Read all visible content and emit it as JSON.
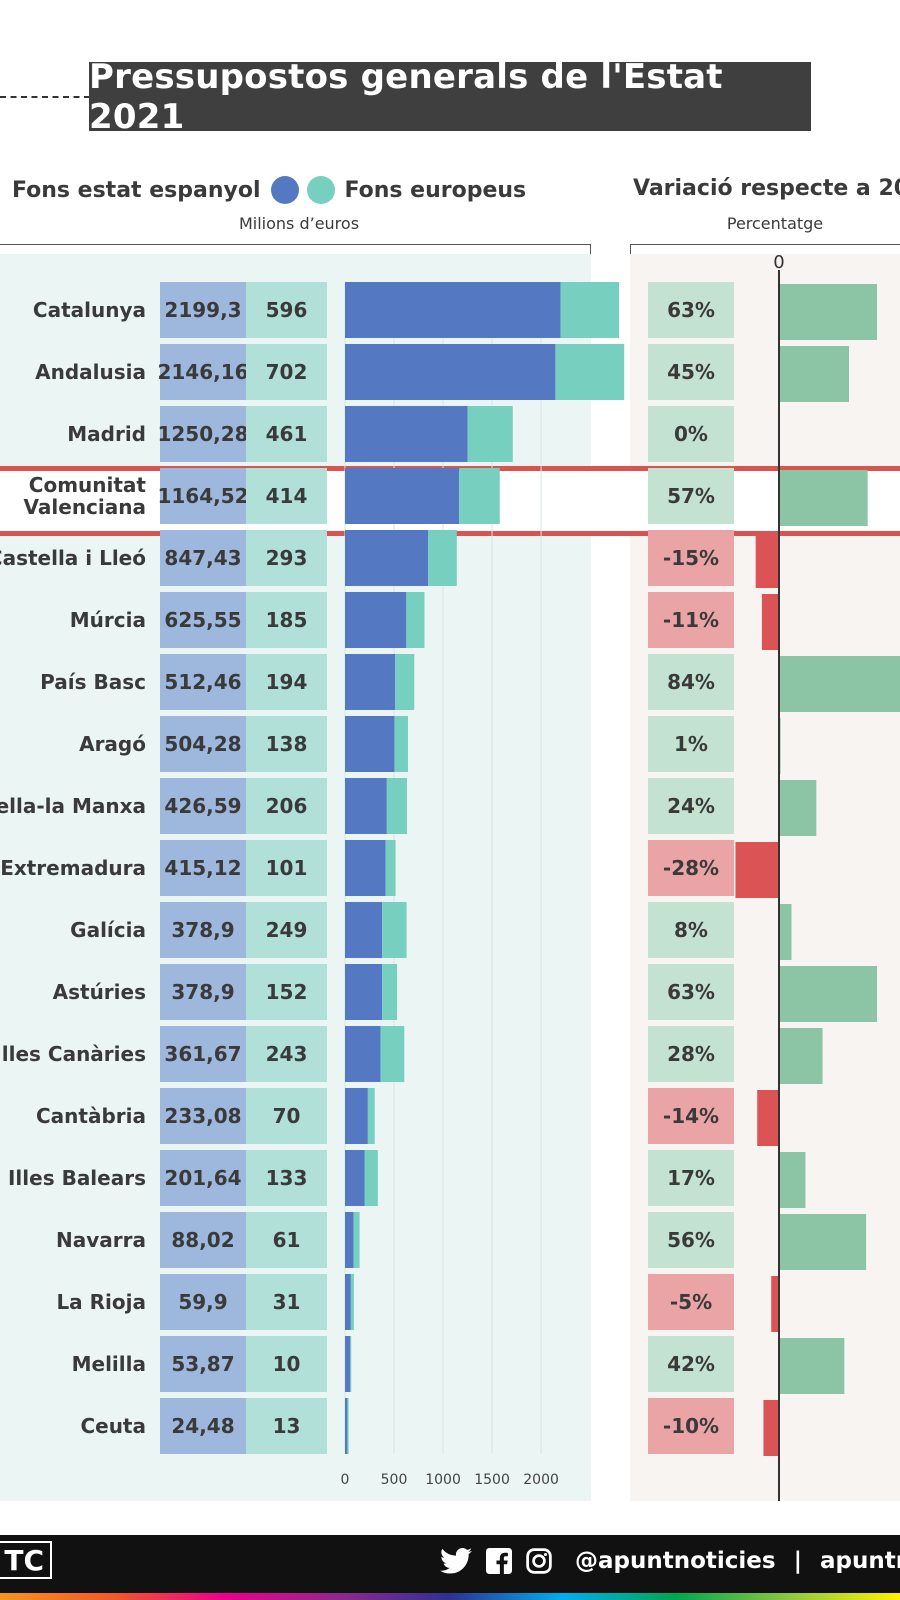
{
  "title": "Pressupostos generals de l'Estat 2021",
  "legend": {
    "state_label": "Fons estat espanyol",
    "eu_label": "Fons europeus",
    "state_color": "#5478c2",
    "eu_color": "#77cfc0"
  },
  "left_subtitle": "Milions d’euros",
  "right_title": "Variació respecte a 20",
  "right_subtitle": "Percentatge",
  "highlight_region": "Comunitat Valenciana",
  "colors": {
    "positive": "#8cc5a6",
    "negative": "#dc5356",
    "positive_cell": "#c4e2d1",
    "negative_cell": "#eba4a6"
  },
  "chart_data": [
    {
      "type": "bar",
      "orientation": "horizontal",
      "stacked": true,
      "categories": [
        "Catalunya",
        "Andalusia",
        "Madrid",
        "Comunitat Valenciana",
        "Castella i Lleó",
        "Múrcia",
        "País Basc",
        "Aragó",
        "tella-la Manxa",
        "Extremadura",
        "Galícia",
        "Astúries",
        "Illes Canàries",
        "Cantàbria",
        "Illes Balears",
        "Navarra",
        "La Rioja",
        "Melilla",
        "Ceuta"
      ],
      "category_display": [
        "Catalunya",
        "Andalusia",
        "Madrid",
        "Comunitat\nValenciana",
        "Castella i Lleó",
        "Múrcia",
        "País Basc",
        "Aragó",
        "tella-la Manxa",
        "Extremadura",
        "Galícia",
        "Astúries",
        "Illes Canàries",
        "Cantàbria",
        "Illes Balears",
        "Navarra",
        "La Rioja",
        "Melilla",
        "Ceuta"
      ],
      "series": [
        {
          "name": "Fons estat espanyol",
          "values": [
            2199.3,
            2146.16,
            1250.28,
            1164.52,
            847.43,
            625.55,
            512.46,
            504.28,
            426.59,
            415.12,
            378.9,
            378.9,
            361.67,
            233.08,
            201.64,
            88.02,
            59.9,
            53.87,
            24.48
          ]
        },
        {
          "name": "Fons europeus",
          "values": [
            596,
            702,
            461,
            414,
            293,
            185,
            194,
            138,
            206,
            101,
            249,
            152,
            243,
            70,
            133,
            61,
            31,
            10,
            13
          ]
        }
      ],
      "value_labels_state": [
        "2199,3",
        "2146,16",
        "1250,28",
        "1164,52",
        "847,43",
        "625,55",
        "512,46",
        "504,28",
        "426,59",
        "415,12",
        "378,9",
        "378,9",
        "361,67",
        "233,08",
        "201,64",
        "88,02",
        "59,9",
        "53,87",
        "24,48"
      ],
      "value_labels_eu": [
        "596",
        "702",
        "461",
        "414",
        "293",
        "185",
        "194",
        "138",
        "206",
        "101",
        "249",
        "152",
        "243",
        "70",
        "133",
        "61",
        "31",
        "10",
        "13"
      ],
      "xticks": [
        0,
        500,
        1000,
        1500,
        2000
      ],
      "xtick_labels": [
        "0",
        "500",
        "1000",
        "1500",
        "2000"
      ],
      "xlim": [
        0,
        2800
      ],
      "ylabel": "Milions d’euros",
      "grid": true
    },
    {
      "type": "bar",
      "orientation": "horizontal",
      "categories": [
        "Catalunya",
        "Andalusia",
        "Madrid",
        "Comunitat Valenciana",
        "Castella i Lleó",
        "Múrcia",
        "País Basc",
        "Aragó",
        "tella-la Manxa",
        "Extremadura",
        "Galícia",
        "Astúries",
        "Illes Canàries",
        "Cantàbria",
        "Illes Balears",
        "Navarra",
        "La Rioja",
        "Melilla",
        "Ceuta"
      ],
      "values": [
        63,
        45,
        0,
        57,
        -15,
        -11,
        84,
        1,
        24,
        -28,
        8,
        63,
        28,
        -14,
        17,
        56,
        -5,
        42,
        -10
      ],
      "value_labels": [
        "63%",
        "45%",
        "0%",
        "57%",
        "-15%",
        "-11%",
        "84%",
        "1%",
        "24%",
        "-28%",
        "8%",
        "63%",
        "28%",
        "-14%",
        "17%",
        "56%",
        "-5%",
        "42%",
        "-10%"
      ],
      "zero_label": "0",
      "title": "Variació respecte a 20",
      "ylabel": "Percentatge"
    }
  ],
  "footer": {
    "logo_text": "TC",
    "handle": "@apuntnoticies",
    "separator": "|",
    "site": "apuntm"
  }
}
